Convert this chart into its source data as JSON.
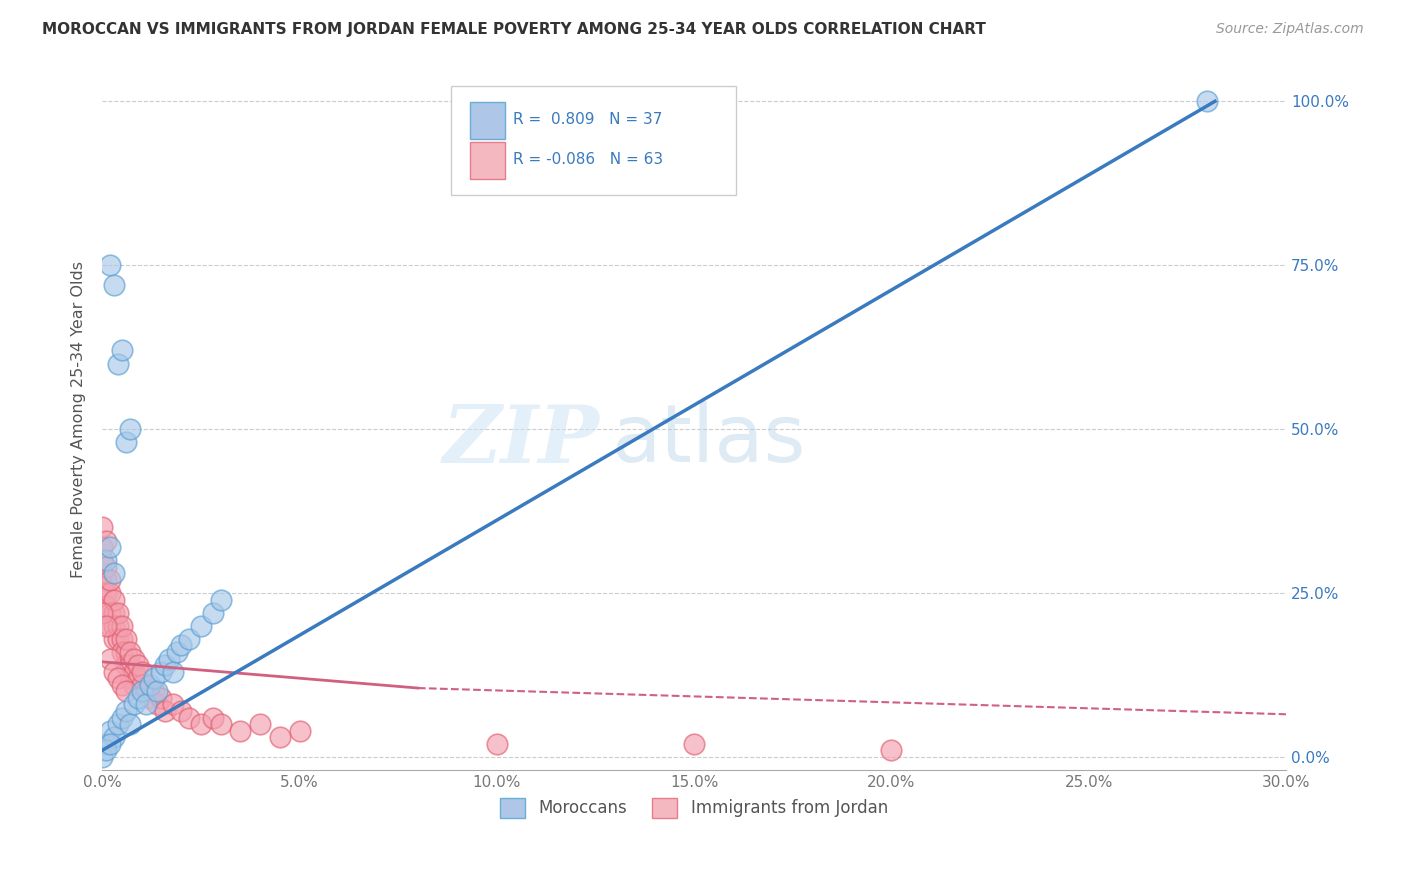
{
  "title": "MOROCCAN VS IMMIGRANTS FROM JORDAN FEMALE POVERTY AMONG 25-34 YEAR OLDS CORRELATION CHART",
  "source": "Source: ZipAtlas.com",
  "ylabel_label": "Female Poverty Among 25-34 Year Olds",
  "watermark_zip": "ZIP",
  "watermark_atlas": "atlas",
  "blue_color": "#a8c8e8",
  "blue_edge_color": "#5a9fd4",
  "pink_color": "#f4a0b0",
  "pink_edge_color": "#e06070",
  "blue_line_color": "#3a7abf",
  "pink_line_color": "#d06080",
  "background_color": "#ffffff",
  "grid_color": "#cccccc",
  "blue_scatter": [
    [
      0.001,
      0.02
    ],
    [
      0.002,
      0.04
    ],
    [
      0.003,
      0.03
    ],
    [
      0.004,
      0.05
    ],
    [
      0.005,
      0.06
    ],
    [
      0.006,
      0.07
    ],
    [
      0.007,
      0.05
    ],
    [
      0.008,
      0.08
    ],
    [
      0.009,
      0.09
    ],
    [
      0.01,
      0.1
    ],
    [
      0.011,
      0.08
    ],
    [
      0.012,
      0.11
    ],
    [
      0.013,
      0.12
    ],
    [
      0.014,
      0.1
    ],
    [
      0.015,
      0.13
    ],
    [
      0.016,
      0.14
    ],
    [
      0.017,
      0.15
    ],
    [
      0.018,
      0.13
    ],
    [
      0.019,
      0.16
    ],
    [
      0.02,
      0.17
    ],
    [
      0.022,
      0.18
    ],
    [
      0.025,
      0.2
    ],
    [
      0.028,
      0.22
    ],
    [
      0.03,
      0.24
    ],
    [
      0.001,
      0.3
    ],
    [
      0.002,
      0.32
    ],
    [
      0.003,
      0.28
    ],
    [
      0.004,
      0.6
    ],
    [
      0.005,
      0.62
    ],
    [
      0.002,
      0.75
    ],
    [
      0.003,
      0.72
    ],
    [
      0.006,
      0.48
    ],
    [
      0.007,
      0.5
    ],
    [
      0.28,
      1.0
    ],
    [
      0.0,
      0.0
    ],
    [
      0.001,
      0.01
    ],
    [
      0.002,
      0.02
    ]
  ],
  "pink_scatter": [
    [
      0.0,
      0.28
    ],
    [
      0.0,
      0.3
    ],
    [
      0.0,
      0.32
    ],
    [
      0.0,
      0.26
    ],
    [
      0.001,
      0.27
    ],
    [
      0.001,
      0.25
    ],
    [
      0.001,
      0.29
    ],
    [
      0.001,
      0.23
    ],
    [
      0.002,
      0.25
    ],
    [
      0.002,
      0.22
    ],
    [
      0.002,
      0.27
    ],
    [
      0.002,
      0.2
    ],
    [
      0.003,
      0.22
    ],
    [
      0.003,
      0.2
    ],
    [
      0.003,
      0.18
    ],
    [
      0.003,
      0.24
    ],
    [
      0.004,
      0.2
    ],
    [
      0.004,
      0.18
    ],
    [
      0.004,
      0.22
    ],
    [
      0.005,
      0.18
    ],
    [
      0.005,
      0.16
    ],
    [
      0.005,
      0.2
    ],
    [
      0.006,
      0.16
    ],
    [
      0.006,
      0.14
    ],
    [
      0.006,
      0.18
    ],
    [
      0.007,
      0.14
    ],
    [
      0.007,
      0.16
    ],
    [
      0.007,
      0.12
    ],
    [
      0.008,
      0.13
    ],
    [
      0.008,
      0.15
    ],
    [
      0.008,
      0.11
    ],
    [
      0.009,
      0.12
    ],
    [
      0.009,
      0.14
    ],
    [
      0.01,
      0.11
    ],
    [
      0.01,
      0.13
    ],
    [
      0.011,
      0.1
    ],
    [
      0.012,
      0.09
    ],
    [
      0.013,
      0.1
    ],
    [
      0.014,
      0.08
    ],
    [
      0.015,
      0.09
    ],
    [
      0.016,
      0.07
    ],
    [
      0.018,
      0.08
    ],
    [
      0.02,
      0.07
    ],
    [
      0.022,
      0.06
    ],
    [
      0.025,
      0.05
    ],
    [
      0.028,
      0.06
    ],
    [
      0.03,
      0.05
    ],
    [
      0.035,
      0.04
    ],
    [
      0.04,
      0.05
    ],
    [
      0.045,
      0.03
    ],
    [
      0.05,
      0.04
    ],
    [
      0.0,
      0.35
    ],
    [
      0.001,
      0.33
    ],
    [
      0.0,
      0.22
    ],
    [
      0.001,
      0.2
    ],
    [
      0.002,
      0.15
    ],
    [
      0.003,
      0.13
    ],
    [
      0.004,
      0.12
    ],
    [
      0.1,
      0.02
    ],
    [
      0.15,
      0.02
    ],
    [
      0.2,
      0.01
    ],
    [
      0.005,
      0.11
    ],
    [
      0.006,
      0.1
    ]
  ],
  "xlim": [
    0.0,
    0.3
  ],
  "ylim": [
    -0.02,
    1.05
  ],
  "x_ticks": [
    0.0,
    0.05,
    0.1,
    0.15,
    0.2,
    0.25,
    0.3
  ],
  "x_labels": [
    "0.0%",
    "5.0%",
    "10.0%",
    "15.0%",
    "20.0%",
    "25.0%",
    "30.0%"
  ],
  "y_ticks": [
    0.0,
    0.25,
    0.5,
    0.75,
    1.0
  ],
  "y_labels": [
    "0.0%",
    "25.0%",
    "50.0%",
    "75.0%",
    "100.0%"
  ],
  "bottom_legend": [
    "Moroccans",
    "Immigrants from Jordan"
  ]
}
